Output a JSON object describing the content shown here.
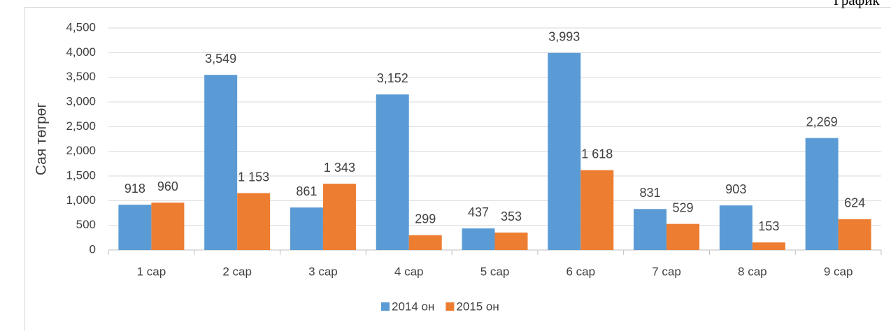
{
  "chart_data": {
    "type": "bar",
    "annotation": "График",
    "ylabel": "Сая төгрөг",
    "categories": [
      "1 сар",
      "2 сар",
      "3 сар",
      "4 сар",
      "5 сар",
      "6 сар",
      "7 сар",
      "8 сар",
      "9 сар"
    ],
    "series": [
      {
        "name": "2014 он",
        "color": "#5b9bd5",
        "values": [
          918,
          3549,
          861,
          3152,
          437,
          3993,
          831,
          903,
          2269
        ],
        "value_labels": [
          "918",
          "3,549",
          "861",
          "3,152",
          "437",
          "3,993",
          "831",
          "903",
          "2,269"
        ]
      },
      {
        "name": "2015 он",
        "color": "#ed7d31",
        "values": [
          960,
          1153,
          1343,
          299,
          353,
          1618,
          529,
          153,
          624
        ],
        "value_labels": [
          "960",
          "1 153",
          "1 343",
          "299",
          "353",
          "1 618",
          "529",
          "153",
          "624"
        ]
      }
    ],
    "ylim": [
      0,
      4500
    ],
    "yticks": [
      0,
      500,
      {
        "value": 1000,
        "label": "1,000"
      },
      {
        "value": 1500,
        "label": "1,500"
      },
      {
        "value": 2000,
        "label": "2,000"
      },
      {
        "value": 2500,
        "label": "2,500"
      },
      {
        "value": 3000,
        "label": "3,000"
      },
      {
        "value": 3500,
        "label": "3,500"
      },
      {
        "value": 4000,
        "label": "4,000"
      },
      {
        "value": 4500,
        "label": "4,500"
      }
    ],
    "grid": true,
    "legend": "bottom"
  }
}
